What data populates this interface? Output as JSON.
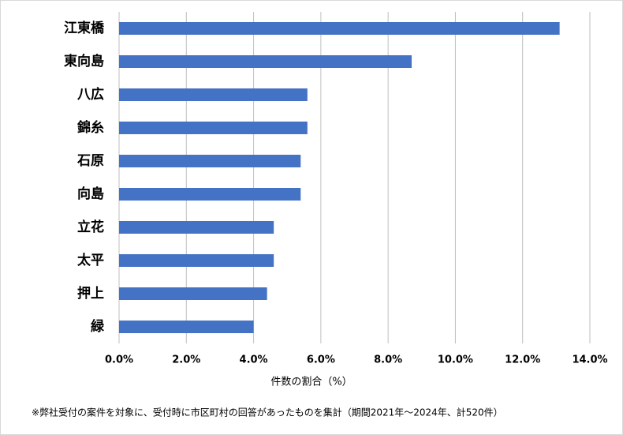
{
  "chart_data": {
    "type": "barh",
    "categories": [
      "江東橋",
      "東向島",
      "八広",
      "錦糸",
      "石原",
      "向島",
      "立花",
      "太平",
      "押上",
      "緑"
    ],
    "values": [
      13.1,
      8.7,
      5.6,
      5.6,
      5.4,
      5.4,
      4.6,
      4.6,
      4.4,
      4.0
    ],
    "color": "#4472c4",
    "xlim": [
      0,
      14
    ],
    "xticks": [
      {
        "value": 0,
        "label": "0.0%"
      },
      {
        "value": 2,
        "label": "2.0%"
      },
      {
        "value": 4,
        "label": "4.0%"
      },
      {
        "value": 6,
        "label": "6.0%"
      },
      {
        "value": 8,
        "label": "8.0%"
      },
      {
        "value": 10,
        "label": "10.0%"
      },
      {
        "value": 12,
        "label": "12.0%"
      },
      {
        "value": 14,
        "label": "14.0%"
      }
    ],
    "xlabel": "件数の割合（%）",
    "note": "※弊社受付の案件を対象に、受付時に市区町村の回答があったものを集計（期間2021年～2024年、計520件）",
    "grid": true
  }
}
